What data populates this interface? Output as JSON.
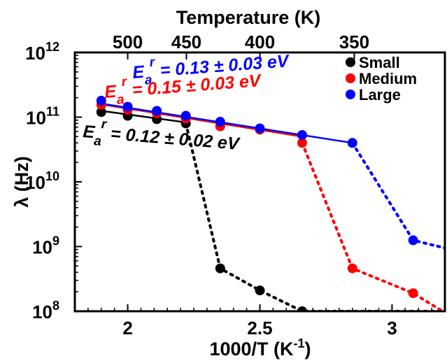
{
  "chart_data": {
    "type": "line",
    "xlabel": "1000/T  (K",
    "xlabel_sup": "-1",
    "xlabel_close": ")",
    "ylabel": "λ (Hz)",
    "top_axis_label": "Temperature (K)",
    "x_range": [
      1.8,
      3.2
    ],
    "y_range_log10": [
      8,
      12
    ],
    "y_scale": "log",
    "grid": false,
    "legend_position": "top-right",
    "x_ticks": [
      {
        "value": 2,
        "label": "2"
      },
      {
        "value": 2.5,
        "label": "2.5"
      },
      {
        "value": 3,
        "label": "3"
      }
    ],
    "y_ticks": [
      {
        "exp": 8,
        "base": "10",
        "sup": "8"
      },
      {
        "exp": 9,
        "base": "10",
        "sup": "9"
      },
      {
        "exp": 10,
        "base": "10",
        "sup": "10"
      },
      {
        "exp": 11,
        "base": "10",
        "sup": "11"
      },
      {
        "exp": 12,
        "base": "10",
        "sup": "12"
      }
    ],
    "top_ticks": [
      {
        "value": 2.0,
        "label": "500"
      },
      {
        "value": 2.222,
        "label": "450"
      },
      {
        "value": 2.5,
        "label": "400"
      },
      {
        "value": 2.857,
        "label": "350"
      }
    ],
    "series": [
      {
        "name": "Small",
        "color": "#000000",
        "points": [
          [
            1.9,
            120000000000.0
          ],
          [
            2.0,
            105000000000.0
          ],
          [
            2.11,
            93000000000.0
          ],
          [
            2.22,
            80000000000.0
          ],
          [
            2.35,
            460000000.0
          ],
          [
            2.5,
            210000000.0
          ],
          [
            2.66,
            100000000.0
          ],
          [
            3.2,
            100000000.0
          ]
        ],
        "fit_line": [
          [
            1.9,
            125000000000.0
          ],
          [
            2.22,
            83000000000.0
          ]
        ]
      },
      {
        "name": "Medium",
        "color": "#ff0000",
        "points": [
          [
            1.9,
            155000000000.0
          ],
          [
            2.0,
            130000000000.0
          ],
          [
            2.11,
            115000000000.0
          ],
          [
            2.22,
            95000000000.0
          ],
          [
            2.35,
            72000000000.0
          ],
          [
            2.5,
            64000000000.0
          ],
          [
            2.66,
            40000000000.0
          ],
          [
            2.85,
            460000000.0
          ],
          [
            3.08,
            190000000.0
          ],
          [
            3.2,
            95000000.0
          ]
        ],
        "fit_line": [
          [
            1.9,
            158000000000.0
          ],
          [
            2.66,
            50000000000.0
          ]
        ]
      },
      {
        "name": "Large",
        "color": "#0000ff",
        "points": [
          [
            1.9,
            180000000000.0
          ],
          [
            2.0,
            145000000000.0
          ],
          [
            2.11,
            125000000000.0
          ],
          [
            2.22,
            105000000000.0
          ],
          [
            2.35,
            85000000000.0
          ],
          [
            2.5,
            67000000000.0
          ],
          [
            2.66,
            53000000000.0
          ],
          [
            2.85,
            40000000000.0
          ],
          [
            3.08,
            1250000000.0
          ],
          [
            3.2,
            950000000.0
          ]
        ],
        "fit_line": [
          [
            1.9,
            162000000000.0
          ],
          [
            2.85,
            40000000000.0
          ]
        ]
      }
    ],
    "annotations": [
      {
        "prefix": "E",
        "sub": "a",
        "sup": "r",
        "text": " = 0.13 ± 0.03 eV",
        "color": "#0000ff"
      },
      {
        "prefix": "E",
        "sub": "a",
        "sup": "r",
        "text": " = 0.15 ± 0.03 eV",
        "color": "#ff0000"
      },
      {
        "prefix": "E",
        "sub": "a",
        "sup": "r",
        "text": " = 0.12 ± 0.02 eV",
        "color": "#000000"
      }
    ]
  }
}
